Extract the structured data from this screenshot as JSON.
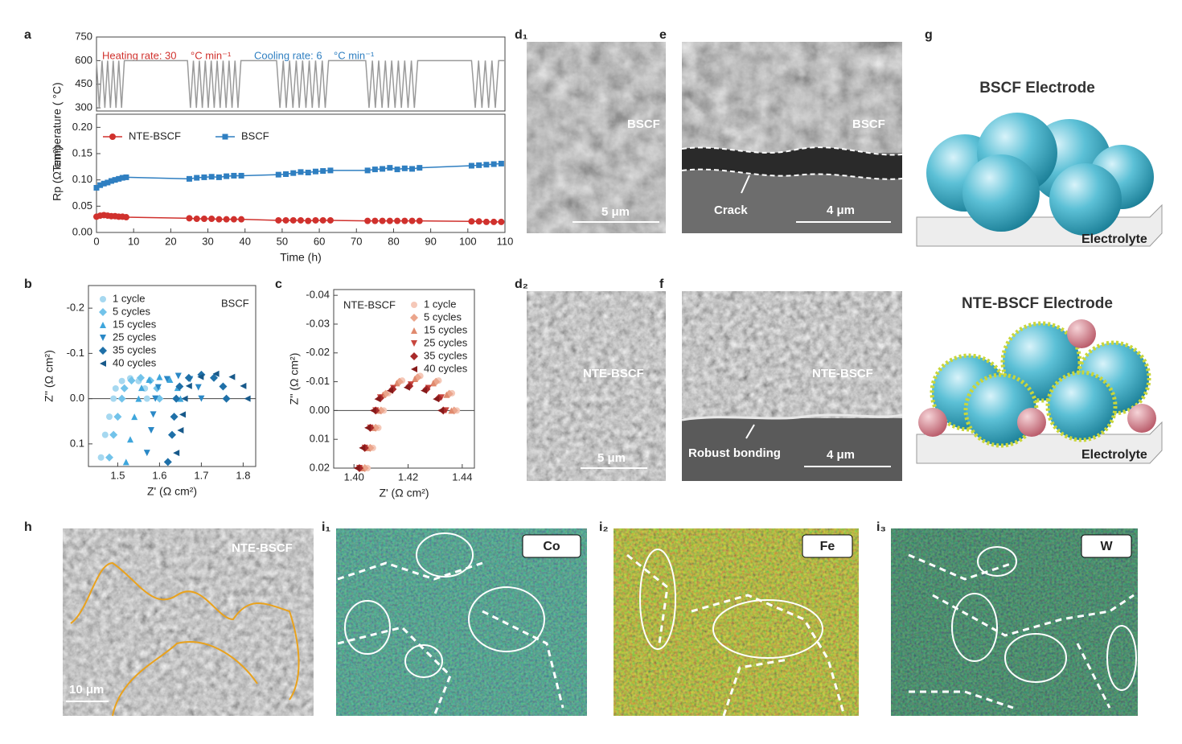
{
  "chart_data": [
    {
      "type": "line",
      "ylabel": "Temperature ( °C)",
      "color": "#9a9a9a",
      "xlim": [
        0,
        110
      ],
      "ylim": [
        280,
        750
      ],
      "yticks": [
        300,
        450,
        600,
        750
      ],
      "x": [
        0,
        0.75,
        1.5,
        2.25,
        3,
        3.75,
        4.5,
        5.25,
        6,
        6.75,
        7.5,
        24.5,
        25.3,
        26.1,
        26.9,
        27.7,
        28.5,
        29.3,
        30.1,
        30.9,
        31.7,
        32.5,
        33.3,
        34.1,
        34.9,
        35.7,
        36.5,
        37.3,
        38.1,
        38.9,
        48.5,
        49.4,
        50.3,
        51.1,
        52,
        52.9,
        53.8,
        54.6,
        55.5,
        56.4,
        57.3,
        58.1,
        59,
        59.9,
        60.8,
        61.6,
        62.5,
        72.5,
        73.4,
        74.3,
        75.1,
        76,
        76.9,
        77.8,
        78.6,
        79.5,
        80.4,
        81.3,
        82.1,
        83,
        83.9,
        84.8,
        85.6,
        86.5,
        101,
        102,
        102.9,
        103.8,
        104.7,
        105.6,
        106.5,
        107.4,
        108.3,
        110
      ],
      "values": [
        600,
        300,
        600,
        300,
        600,
        300,
        600,
        300,
        600,
        300,
        600,
        600,
        300,
        600,
        300,
        600,
        300,
        600,
        300,
        600,
        300,
        600,
        300,
        600,
        300,
        600,
        300,
        600,
        300,
        600,
        600,
        300,
        600,
        300,
        600,
        300,
        600,
        300,
        600,
        300,
        600,
        300,
        600,
        300,
        600,
        300,
        600,
        600,
        300,
        600,
        300,
        600,
        300,
        600,
        300,
        600,
        300,
        600,
        300,
        600,
        300,
        600,
        300,
        600,
        600,
        300,
        600,
        300,
        600,
        300,
        600,
        300,
        600,
        600
      ],
      "annotations": [
        {
          "text": "Heating rate: 30",
          "color": "#d0312d"
        },
        {
          "text": "°C min⁻¹",
          "color": "#d0312d"
        },
        {
          "text": "Cooling rate: 6",
          "color": "#2f7fc1"
        },
        {
          "text": "°C min⁻¹",
          "color": "#2f7fc1"
        }
      ]
    },
    {
      "type": "line",
      "xlabel": "Time (h)",
      "ylabel": "Rp (Ω cm²)",
      "legend": "upper left",
      "xlim": [
        0,
        110
      ],
      "xticks": [
        0,
        10,
        20,
        30,
        40,
        50,
        60,
        70,
        80,
        90,
        100,
        110
      ],
      "ylim": [
        0,
        0.225
      ],
      "yticks": [
        {
          "value": 0,
          "label": "0.00"
        },
        {
          "value": 0.05,
          "label": "0.05"
        },
        {
          "value": 0.1,
          "label": "0.10"
        },
        {
          "value": 0.15,
          "label": "0.15"
        },
        {
          "value": 0.2,
          "label": "0.20"
        }
      ],
      "x": [
        0,
        1,
        2,
        3,
        4,
        5,
        6,
        7,
        8,
        25,
        27,
        29,
        31,
        33,
        35,
        37,
        39,
        49,
        51,
        53,
        55,
        57,
        59,
        61,
        63,
        73,
        75,
        77,
        79,
        81,
        83,
        85,
        87,
        101,
        103,
        105,
        107,
        109
      ],
      "series": [
        {
          "name": "NTE-BSCF",
          "color": "#d0312d",
          "marker": "circle",
          "values": [
            0.03,
            0.032,
            0.033,
            0.032,
            0.031,
            0.031,
            0.03,
            0.03,
            0.029,
            0.027,
            0.026,
            0.026,
            0.026,
            0.025,
            0.025,
            0.025,
            0.025,
            0.023,
            0.023,
            0.023,
            0.023,
            0.022,
            0.023,
            0.023,
            0.023,
            0.022,
            0.022,
            0.022,
            0.022,
            0.022,
            0.022,
            0.022,
            0.022,
            0.021,
            0.021,
            0.02,
            0.02,
            0.02
          ]
        },
        {
          "name": "BSCF",
          "color": "#2f7fc1",
          "marker": "square",
          "values": [
            0.085,
            0.09,
            0.093,
            0.095,
            0.098,
            0.1,
            0.102,
            0.104,
            0.105,
            0.102,
            0.104,
            0.105,
            0.106,
            0.105,
            0.107,
            0.108,
            0.108,
            0.11,
            0.111,
            0.113,
            0.115,
            0.114,
            0.116,
            0.117,
            0.118,
            0.118,
            0.12,
            0.121,
            0.123,
            0.12,
            0.122,
            0.121,
            0.123,
            0.127,
            0.128,
            0.129,
            0.13,
            0.131
          ]
        }
      ]
    },
    {
      "type": "scatter",
      "xlabel": "Z' (Ω cm²)",
      "ylabel": "Z'' (Ω cm²)",
      "legend": "upper left",
      "zero_line": true,
      "annotations": [
        {
          "text": "BSCF",
          "color": "#222"
        }
      ],
      "xlim": [
        1.43,
        1.83
      ],
      "xticks": [
        1.5,
        1.6,
        1.7,
        1.8
      ],
      "ylim": [
        0.15,
        -0.25
      ],
      "yticks": [
        -0.2,
        -0.1,
        {
          "value": 0,
          "label": "0.0"
        },
        0.1
      ],
      "series": [
        {
          "name": "1 cycle",
          "color": "#a6d8f0",
          "marker": "circle",
          "x": [
            1.46,
            1.47,
            1.48,
            1.49,
            1.495,
            1.51,
            1.53,
            1.55,
            1.565,
            1.57
          ],
          "values": [
            0.13,
            0.08,
            0.04,
            0,
            -0.0225,
            -0.039,
            -0.045,
            -0.039,
            -0.0225,
            0
          ]
        },
        {
          "name": "5 cycles",
          "color": "#72c3ea",
          "marker": "diamond",
          "x": [
            1.48,
            1.49,
            1.5,
            1.51,
            1.516,
            1.533,
            1.555,
            1.578,
            1.594,
            1.6
          ],
          "values": [
            0.13,
            0.08,
            0.04,
            0,
            -0.023,
            -0.04,
            -0.046,
            -0.04,
            -0.023,
            0
          ]
        },
        {
          "name": "15 cycles",
          "color": "#3ea6dc",
          "marker": "triangle-up",
          "x": [
            1.52,
            1.53,
            1.54,
            1.55,
            1.557,
            1.575,
            1.6,
            1.625,
            1.643,
            1.65
          ],
          "values": [
            0.14,
            0.09,
            0.04,
            0,
            -0.024,
            -0.042,
            -0.048,
            -0.042,
            -0.024,
            0
          ]
        },
        {
          "name": "25 cycles",
          "color": "#2a88c6",
          "marker": "triangle-down",
          "x": [
            1.57,
            1.58,
            1.585,
            1.59,
            1.597,
            1.618,
            1.645,
            1.673,
            1.693,
            1.7
          ],
          "values": [
            0.12,
            0.07,
            0.035,
            0,
            -0.025,
            -0.043,
            -0.05,
            -0.043,
            -0.025,
            0
          ]
        },
        {
          "name": "35 cycles",
          "color": "#1f70a8",
          "marker": "diamond",
          "x": [
            1.62,
            1.63,
            1.635,
            1.64,
            1.648,
            1.67,
            1.7,
            1.73,
            1.752,
            1.76
          ],
          "values": [
            0.14,
            0.08,
            0.04,
            0,
            -0.027,
            -0.046,
            -0.053,
            -0.046,
            -0.027,
            0
          ]
        },
        {
          "name": "40 cycles",
          "color": "#17598a",
          "marker": "triangle-left",
          "x": [
            1.64,
            1.65,
            1.655,
            1.66,
            1.67,
            1.698,
            1.735,
            1.773,
            1.8,
            1.81
          ],
          "values": [
            0.12,
            0.07,
            0.035,
            0,
            -0.028,
            -0.048,
            -0.055,
            -0.048,
            -0.028,
            0
          ]
        }
      ]
    },
    {
      "type": "scatter",
      "xlabel": "Z' (Ω cm²)",
      "ylabel": "Z'' (Ω cm²)",
      "legend": "upper right",
      "zero_line": true,
      "annotations": [
        {
          "text": "NTE-BSCF",
          "color": "#222"
        }
      ],
      "xlim": [
        1.3925,
        1.4445
      ],
      "xticks": [
        {
          "value": 1.4,
          "label": "1.40"
        },
        1.42,
        1.44
      ],
      "ylim": [
        0.02,
        -0.042
      ],
      "yticks": [
        -0.04,
        -0.03,
        -0.02,
        -0.01,
        {
          "value": 0,
          "label": "0.00"
        },
        0.01,
        0.02
      ],
      "series": [
        {
          "name": "1 cycle",
          "color": "#f5c8b8",
          "marker": "circle",
          "x": [
            1.405,
            1.407,
            1.409,
            1.411,
            1.4127,
            1.4178,
            1.4245,
            1.4313,
            1.4362,
            1.438
          ],
          "values": [
            0.02,
            0.013,
            0.006,
            0,
            -0.006,
            -0.0104,
            -0.012,
            -0.0104,
            -0.006,
            0
          ]
        },
        {
          "name": "5 cycles",
          "color": "#eba58c",
          "marker": "diamond",
          "x": [
            1.404,
            1.406,
            1.408,
            1.41,
            1.4117,
            1.4168,
            1.4235,
            1.4303,
            1.4352,
            1.437
          ],
          "values": [
            0.02,
            0.013,
            0.006,
            0,
            -0.0058,
            -0.01,
            -0.0115,
            -0.01,
            -0.0058,
            0
          ]
        },
        {
          "name": "15 cycles",
          "color": "#e08a6e",
          "marker": "triangle-up",
          "x": [
            1.403,
            1.405,
            1.407,
            1.409,
            1.4107,
            1.4158,
            1.4225,
            1.4293,
            1.4342,
            1.436
          ],
          "values": [
            0.02,
            0.013,
            0.006,
            0,
            -0.0055,
            -0.0095,
            -0.011,
            -0.0095,
            -0.0055,
            0
          ]
        },
        {
          "name": "25 cycles",
          "color": "#c8463e",
          "marker": "triangle-down",
          "x": [
            1.402,
            1.404,
            1.406,
            1.408,
            1.4097,
            1.4145,
            1.421,
            1.4275,
            1.4323,
            1.434
          ],
          "values": [
            0.02,
            0.013,
            0.006,
            0,
            -0.0045,
            -0.0078,
            -0.009,
            -0.0078,
            -0.0045,
            0
          ]
        },
        {
          "name": "35 cycles",
          "color": "#a82a2a",
          "marker": "diamond",
          "x": [
            1.402,
            1.404,
            1.406,
            1.408,
            1.4097,
            1.4143,
            1.4205,
            1.4268,
            1.4313,
            1.433
          ],
          "values": [
            0.02,
            0.013,
            0.006,
            0,
            -0.0043,
            -0.0074,
            -0.0085,
            -0.0074,
            -0.0043,
            0
          ]
        },
        {
          "name": "40 cycles",
          "color": "#861a1a",
          "marker": "triangle-left",
          "x": [
            1.401,
            1.403,
            1.405,
            1.407,
            1.4087,
            1.4133,
            1.4195,
            1.4258,
            1.4303,
            1.432
          ],
          "values": [
            0.02,
            0.013,
            0.006,
            0,
            -0.004,
            -0.0069,
            -0.008,
            -0.0069,
            -0.004,
            0
          ]
        }
      ]
    }
  ],
  "panel_labels": [
    "a",
    "b",
    "c",
    "d₁",
    "e",
    "g",
    "d₂",
    "f",
    "h",
    "i₁",
    "i₂",
    "i₃"
  ],
  "images": [
    {
      "texts": [
        "BSCF",
        "5 μm"
      ]
    },
    {
      "texts": [
        "BSCF",
        "Crack",
        "4 μm"
      ]
    },
    {
      "texts": [
        "BSCF Electrode",
        "Electrolyte"
      ]
    },
    {
      "texts": [
        "NTE-BSCF",
        "5 μm"
      ]
    },
    {
      "texts": [
        "NTE-BSCF",
        "Robust bonding",
        "4 μm"
      ]
    },
    {
      "texts": [
        "NTE-BSCF Electrode",
        "Electrolyte"
      ]
    },
    {
      "texts": [
        "NTE-BSCF",
        "10 μm"
      ]
    },
    {
      "texts": [
        "Co"
      ]
    },
    {
      "texts": [
        "Fe"
      ]
    },
    {
      "texts": [
        "W"
      ]
    }
  ]
}
